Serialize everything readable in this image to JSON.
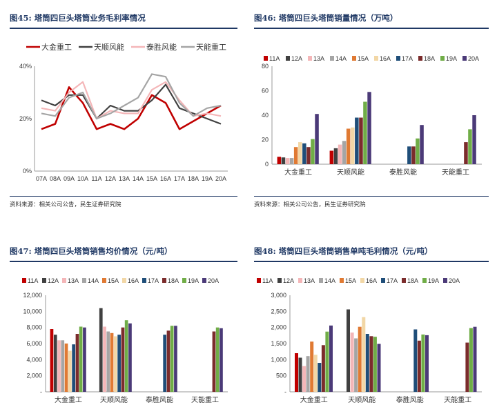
{
  "panels": [
    {
      "title": "图45: 塔筒四巨头塔筒业务毛利率情况",
      "source": "资料来源：相关公司公告，民生证券研究院"
    },
    {
      "title": "图46: 塔筒四巨头塔筒销量情况（万吨）",
      "source": "资料来源：相关公司公告，民生证券研究院"
    },
    {
      "title": "图47: 塔筒四巨头塔筒销售均价情况（元/吨）",
      "source": ""
    },
    {
      "title": "图48: 塔筒四巨头塔筒销售单吨毛利情况（元/吨）",
      "source": ""
    }
  ],
  "colors": {
    "title": "#1f3864",
    "companies": {
      "大金重工": "#c00000",
      "天顺风能": "#404040",
      "泰胜风能": "#f4b6b8",
      "天能重工": "#a5a5a5"
    },
    "years": [
      "#c00000",
      "#404040",
      "#f4b6b8",
      "#a5a5a5",
      "#e07a33",
      "#f2d7a6",
      "#1f4e79",
      "#7b2c2c",
      "#70ad47",
      "#4b3a78"
    ]
  },
  "chart_data": [
    {
      "type": "line",
      "x": [
        "07A",
        "08A",
        "09A",
        "10A",
        "11A",
        "12A",
        "13A",
        "14A",
        "15A",
        "16A",
        "17A",
        "18A",
        "19A",
        "20A"
      ],
      "yticks": [
        "0%",
        "20%",
        "40%"
      ],
      "ylim": [
        0,
        0.4
      ],
      "legend": "top",
      "series": [
        {
          "name": "大金重工",
          "values": [
            0.16,
            0.18,
            0.32,
            0.26,
            0.16,
            0.18,
            0.16,
            0.2,
            0.29,
            0.26,
            0.16,
            0.19,
            0.22,
            0.25
          ]
        },
        {
          "name": "天顺风能",
          "values": [
            0.27,
            0.25,
            0.29,
            0.29,
            0.2,
            0.25,
            0.23,
            0.23,
            0.27,
            0.33,
            0.24,
            0.22,
            0.2,
            0.18
          ]
        },
        {
          "name": "泰胜风能",
          "values": [
            0.24,
            0.23,
            0.3,
            0.34,
            0.2,
            0.23,
            0.22,
            0.22,
            0.31,
            0.34,
            0.27,
            0.21,
            0.22,
            0.21
          ]
        },
        {
          "name": "天能重工",
          "values": [
            0.22,
            0.21,
            0.28,
            0.3,
            0.2,
            0.22,
            0.25,
            0.28,
            0.37,
            0.36,
            0.26,
            0.21,
            0.24,
            0.25
          ]
        }
      ]
    },
    {
      "type": "bar",
      "categories": [
        "大金重工",
        "天顺风能",
        "泰胜风能",
        "天能重工"
      ],
      "legend": "top",
      "ylim": [
        0,
        80
      ],
      "yticks": [
        "0",
        "20",
        "40",
        "60",
        "80"
      ],
      "series": [
        {
          "name": "11A",
          "values": [
            6,
            11,
            null,
            null
          ]
        },
        {
          "name": "12A",
          "values": [
            5.5,
            13,
            null,
            null
          ]
        },
        {
          "name": "13A",
          "values": [
            5,
            16,
            null,
            null
          ]
        },
        {
          "name": "14A",
          "values": [
            5,
            19,
            null,
            null
          ]
        },
        {
          "name": "15A",
          "values": [
            14,
            29,
            null,
            null
          ]
        },
        {
          "name": "16A",
          "values": [
            18,
            30,
            null,
            null
          ]
        },
        {
          "name": "17A",
          "values": [
            17,
            38,
            14.5,
            null
          ]
        },
        {
          "name": "18A",
          "values": [
            14,
            38,
            14.5,
            18
          ]
        },
        {
          "name": "19A",
          "values": [
            20.5,
            51,
            21,
            28.5
          ]
        },
        {
          "name": "20A",
          "values": [
            41,
            59,
            32,
            40
          ]
        }
      ]
    },
    {
      "type": "bar",
      "categories": [
        "大金重工",
        "天顺风能",
        "泰胜风能",
        "天能重工"
      ],
      "legend": "top",
      "ylim": [
        0,
        12000
      ],
      "yticks": [
        "-",
        "2,000",
        "4,000",
        "6,000",
        "8,000",
        "10,000",
        "12,000"
      ],
      "series": [
        {
          "name": "11A",
          "values": [
            7800,
            null,
            null,
            null
          ]
        },
        {
          "name": "12A",
          "values": [
            7100,
            10400,
            null,
            null
          ]
        },
        {
          "name": "13A",
          "values": [
            6400,
            8100,
            null,
            null
          ]
        },
        {
          "name": "14A",
          "values": [
            6400,
            7500,
            null,
            null
          ]
        },
        {
          "name": "15A",
          "values": [
            6000,
            7300,
            null,
            null
          ]
        },
        {
          "name": "16A",
          "values": [
            5100,
            6900,
            null,
            null
          ]
        },
        {
          "name": "17A",
          "values": [
            5900,
            7100,
            7100,
            null
          ]
        },
        {
          "name": "18A",
          "values": [
            7200,
            8000,
            7600,
            7500
          ]
        },
        {
          "name": "19A",
          "values": [
            8100,
            8900,
            8200,
            8000
          ]
        },
        {
          "name": "20A",
          "values": [
            8000,
            8500,
            8200,
            7900
          ]
        }
      ]
    },
    {
      "type": "bar",
      "categories": [
        "大金重工",
        "天顺风能",
        "泰胜风能",
        "天能重工"
      ],
      "legend": "top",
      "ylim": [
        0,
        3000
      ],
      "yticks": [
        "-",
        "500",
        "1,000",
        "1,500",
        "2,000",
        "2,500",
        "3,000"
      ],
      "series": [
        {
          "name": "11A",
          "values": [
            1200,
            null,
            null,
            null
          ]
        },
        {
          "name": "12A",
          "values": [
            1060,
            2560,
            null,
            null
          ]
        },
        {
          "name": "13A",
          "values": [
            800,
            1840,
            null,
            null
          ]
        },
        {
          "name": "14A",
          "values": [
            1110,
            1660,
            null,
            null
          ]
        },
        {
          "name": "15A",
          "values": [
            1560,
            2020,
            null,
            null
          ]
        },
        {
          "name": "16A",
          "values": [
            1150,
            2320,
            null,
            null
          ]
        },
        {
          "name": "17A",
          "values": [
            900,
            1800,
            1940,
            null
          ]
        },
        {
          "name": "18A",
          "values": [
            1450,
            1730,
            1590,
            1530
          ]
        },
        {
          "name": "19A",
          "values": [
            1870,
            1710,
            1780,
            1980
          ]
        },
        {
          "name": "20A",
          "values": [
            2060,
            1490,
            1760,
            2020
          ]
        }
      ]
    }
  ]
}
